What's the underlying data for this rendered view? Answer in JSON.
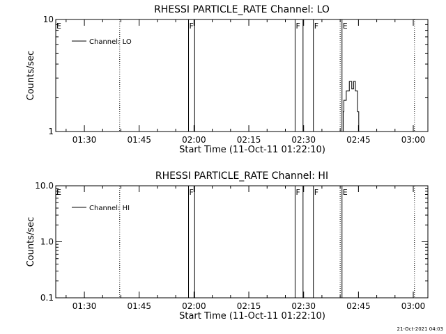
{
  "stamp": "21-Oct-2021 04:03",
  "chart_data": [
    {
      "type": "line",
      "title": "RHESSI PARTICLE_RATE Channel: LO",
      "xlabel": "Start Time (11-Oct-11 01:22:10)",
      "ylabel": "Counts/sec",
      "yscale": "log",
      "xlim": [
        "01:22:10",
        "03:04:00"
      ],
      "ylim": [
        1,
        10
      ],
      "xticks": [
        "01:30",
        "01:45",
        "02:00",
        "02:15",
        "02:30",
        "02:45",
        "03:00"
      ],
      "yticks": [
        "1",
        "10"
      ],
      "legend": {
        "label": "Channel: LO",
        "position": "top-left"
      },
      "series": [
        {
          "name": "Channel: LO",
          "x": [
            "02:40:40",
            "02:40:50",
            "02:41:00",
            "02:41:20",
            "02:41:40",
            "02:42:00",
            "02:42:30",
            "02:42:50",
            "02:43:10",
            "02:43:40",
            "02:43:55",
            "02:44:10",
            "02:44:25",
            "02:44:45",
            "02:45:05"
          ],
          "y": [
            1,
            1.5,
            1.9,
            1.9,
            2.3,
            2.3,
            2.8,
            2.8,
            2.4,
            2.8,
            2.8,
            2.3,
            2.3,
            1.5,
            1
          ]
        }
      ],
      "flags": [
        {
          "label": "E",
          "start": "01:22:10",
          "end": "01:22:10"
        },
        {
          "label": "F",
          "start": "01:58:30",
          "end": "02:00:10"
        },
        {
          "label": "F",
          "start": "02:27:40",
          "end": "02:29:50"
        },
        {
          "label": "F",
          "start": "02:32:40",
          "end": "02:32:40"
        },
        {
          "label": "E",
          "start": "02:40:30",
          "end": "02:40:30"
        }
      ],
      "dotted_lines": [
        "01:39:40",
        "02:40:00",
        "03:00:20"
      ]
    },
    {
      "type": "line",
      "title": "RHESSI PARTICLE_RATE Channel: HI",
      "xlabel": "Start Time (11-Oct-11 01:22:10)",
      "ylabel": "Counts/sec",
      "yscale": "log",
      "xlim": [
        "01:22:10",
        "03:04:00"
      ],
      "ylim": [
        0.1,
        10
      ],
      "xticks": [
        "01:30",
        "01:45",
        "02:00",
        "02:15",
        "02:30",
        "02:45",
        "03:00"
      ],
      "yticks": [
        "0.1",
        "1.0",
        "10.0"
      ],
      "legend": {
        "label": "Channel: HI",
        "position": "top-left"
      },
      "series": [
        {
          "name": "Channel: HI",
          "x": [],
          "y": []
        }
      ],
      "flags": [
        {
          "label": "E",
          "start": "01:22:10",
          "end": "01:22:10"
        },
        {
          "label": "F",
          "start": "01:58:30",
          "end": "02:00:10"
        },
        {
          "label": "F",
          "start": "02:27:40",
          "end": "02:29:50"
        },
        {
          "label": "F",
          "start": "02:32:40",
          "end": "02:32:40"
        },
        {
          "label": "E",
          "start": "02:40:30",
          "end": "02:40:30"
        }
      ],
      "dotted_lines": [
        "01:39:40",
        "02:40:00",
        "03:00:20"
      ]
    }
  ]
}
